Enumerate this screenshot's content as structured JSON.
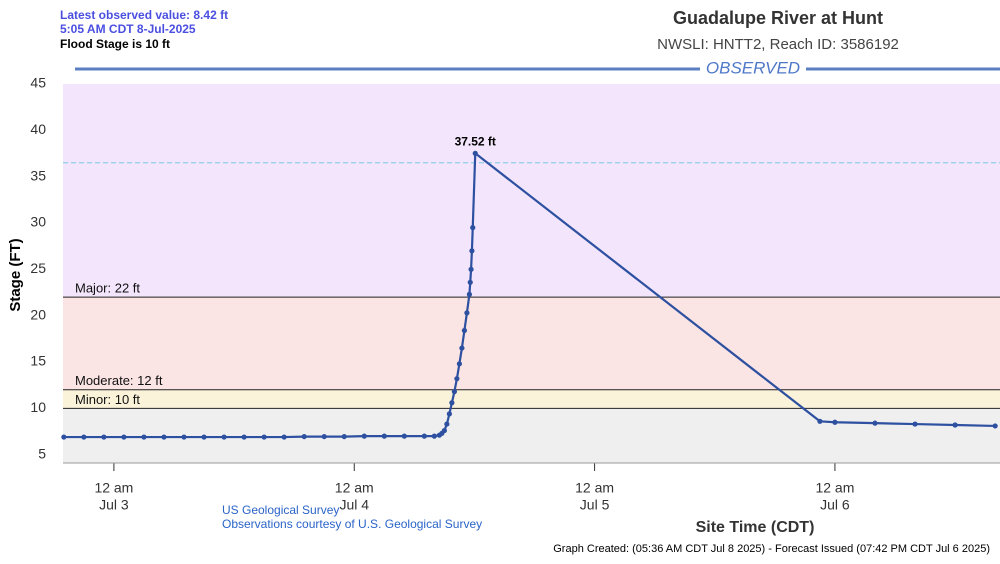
{
  "header": {
    "latest": "Latest observed value: 8.42 ft",
    "time": "5:05 AM CDT 8-Jul-2025",
    "flood_stage": "Flood Stage is 10 ft"
  },
  "chart_data": {
    "type": "line",
    "title": "Guadalupe River at Hunt",
    "subtitle": "NWSLI: HNTT2, Reach ID: 3586192",
    "banner": "OBSERVED",
    "ylabel": "Stage (FT)",
    "xlabel": "Site Time (CDT)",
    "ylim": [
      4.1,
      45
    ],
    "yticks": [
      5,
      10,
      15,
      20,
      25,
      30,
      35,
      40,
      45
    ],
    "xlim": [
      "Jul 2 18:55",
      "Jul 6 16:29"
    ],
    "xticks": [
      {
        "value": "Jul 3 00:00",
        "label": "12 am",
        "date": "Jul 3"
      },
      {
        "value": "Jul 4 00:00",
        "label": "12 am",
        "date": "Jul 4"
      },
      {
        "value": "Jul 5 00:00",
        "label": "12 am",
        "date": "Jul 5"
      },
      {
        "value": "Jul 6 00:00",
        "label": "12 am",
        "date": "Jul 6"
      }
    ],
    "flood_levels": [
      {
        "label": "Minor: 10 ft",
        "value": 10,
        "color": "#fbf2da"
      },
      {
        "label": "Moderate: 12 ft",
        "value": 12,
        "color": "#fbe4e4"
      },
      {
        "label": "Major: 22 ft",
        "value": 22,
        "color": "#f3e5fb"
      }
    ],
    "base_color": "#efefef",
    "reference_line": {
      "value": 36.5,
      "color": "#8fd0ee"
    },
    "x": [
      "Jul 2 19:00",
      "Jul 2 21:00",
      "Jul 2 23:00",
      "Jul 3 01:00",
      "Jul 3 03:00",
      "Jul 3 05:00",
      "Jul 3 07:00",
      "Jul 3 09:00",
      "Jul 3 11:00",
      "Jul 3 13:00",
      "Jul 3 15:00",
      "Jul 3 17:00",
      "Jul 3 19:00",
      "Jul 3 21:00",
      "Jul 3 23:00",
      "Jul 4 01:00",
      "Jul 4 03:00",
      "Jul 4 05:00",
      "Jul 4 07:00",
      "Jul 4 08:00",
      "Jul 4 08:30",
      "Jul 4 08:45",
      "Jul 4 09:00",
      "Jul 4 09:15",
      "Jul 4 09:30",
      "Jul 4 09:45",
      "Jul 4 10:00",
      "Jul 4 10:15",
      "Jul 4 10:30",
      "Jul 4 10:45",
      "Jul 4 11:00",
      "Jul 4 11:15",
      "Jul 4 11:30",
      "Jul 4 11:35",
      "Jul 4 11:40",
      "Jul 4 11:45",
      "Jul 4 11:50",
      "Jul 4 12:05",
      "Jul 5 22:30",
      "Jul 6 00:00",
      "Jul 6 04:00",
      "Jul 6 08:00",
      "Jul 6 12:00",
      "Jul 6 16:00"
    ],
    "series": [
      {
        "name": "Observed",
        "color": "#2d50a0",
        "values": [
          6.9,
          6.9,
          6.9,
          6.9,
          6.9,
          6.9,
          6.9,
          6.9,
          6.9,
          6.9,
          6.9,
          6.9,
          6.95,
          6.95,
          6.95,
          7.0,
          7.0,
          7.0,
          7.0,
          7.0,
          7.1,
          7.3,
          7.6,
          8.3,
          9.4,
          10.6,
          11.8,
          13.2,
          14.8,
          16.5,
          18.4,
          20.3,
          22.3,
          23.6,
          25.0,
          27.0,
          29.5,
          37.52,
          8.6,
          8.5,
          8.4,
          8.3,
          8.2,
          8.1
        ],
        "value_labels": [
          null,
          null,
          null,
          null,
          null,
          null,
          null,
          null,
          null,
          null,
          null,
          null,
          null,
          null,
          null,
          null,
          null,
          null,
          null,
          null,
          null,
          null,
          null,
          null,
          null,
          null,
          null,
          null,
          null,
          null,
          null,
          null,
          null,
          null,
          null,
          null,
          null,
          "37.52 ft",
          null,
          null,
          null,
          null,
          null,
          null
        ]
      }
    ]
  },
  "footer": {
    "source": "US Geological Survey",
    "courtesy": "Observations courtesy of U.S. Geological Survey",
    "created": "Graph Created: (05:36 AM CDT Jul 8 2025) - Forecast Issued (07:42 PM CDT Jul 6 2025)"
  }
}
